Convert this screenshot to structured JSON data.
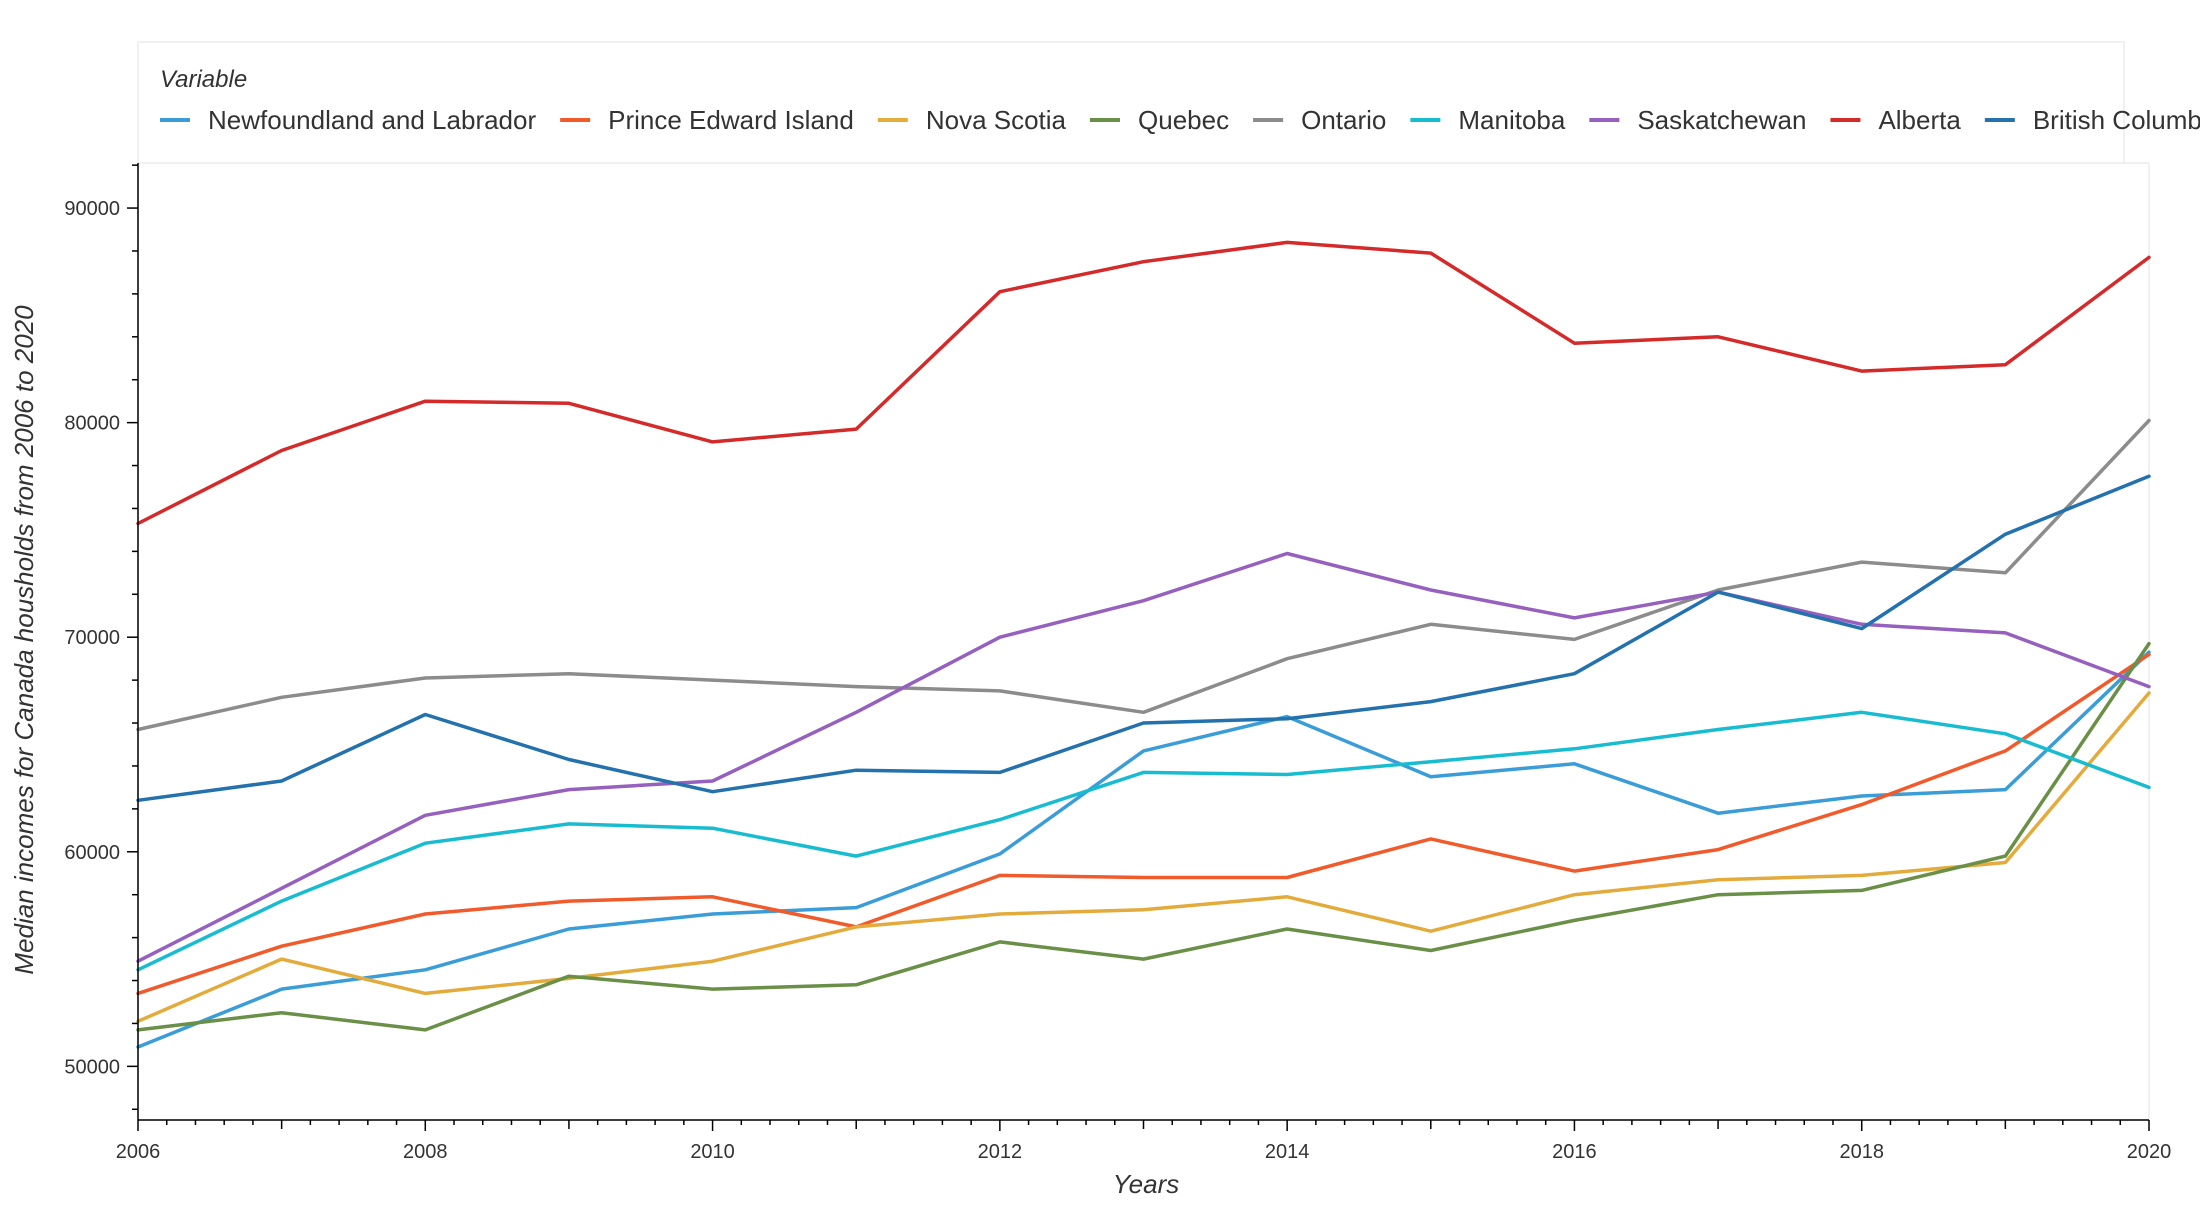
{
  "chart_data": {
    "type": "line",
    "xlabel": "Years",
    "ylabel": "Median incomes for Canada housholds from 2006 to 2020",
    "legend_title": "Variable",
    "legend_position": "top",
    "grid": false,
    "xlim": [
      2006,
      2020
    ],
    "ylim": [
      47500,
      92100
    ],
    "x": [
      2006,
      2007,
      2008,
      2009,
      2010,
      2011,
      2012,
      2013,
      2014,
      2015,
      2016,
      2017,
      2018,
      2019,
      2020
    ],
    "x_ticks": [
      2006,
      2008,
      2010,
      2012,
      2014,
      2016,
      2018,
      2020
    ],
    "y_ticks": [
      50000,
      60000,
      70000,
      80000,
      90000
    ],
    "series": [
      {
        "name": "Newfoundland and Labrador",
        "color": "#3a9dd8",
        "values": [
          50900,
          53600,
          54500,
          56400,
          57100,
          57400,
          59900,
          64700,
          66300,
          63500,
          64100,
          61800,
          62600,
          62900,
          69300
        ]
      },
      {
        "name": "Prince Edward Island",
        "color": "#f15a2b",
        "values": [
          53400,
          55600,
          57100,
          57700,
          57900,
          56500,
          58900,
          58800,
          58800,
          60600,
          59100,
          60100,
          62200,
          64700,
          69200
        ]
      },
      {
        "name": "Nova Scotia",
        "color": "#e3ab3b",
        "values": [
          52100,
          55000,
          53400,
          54100,
          54900,
          56500,
          57100,
          57300,
          57900,
          56300,
          58000,
          58700,
          58900,
          59500,
          67400
        ]
      },
      {
        "name": "Quebec",
        "color": "#6a8f47",
        "values": [
          51700,
          52500,
          51700,
          54200,
          53600,
          53800,
          55800,
          55000,
          56400,
          55400,
          56800,
          58000,
          58200,
          59800,
          69700
        ]
      },
      {
        "name": "Ontario",
        "color": "#8c8c8c",
        "values": [
          65700,
          67200,
          68100,
          68300,
          68000,
          67700,
          67500,
          66500,
          69000,
          70600,
          69900,
          72200,
          73500,
          73000,
          80100
        ]
      },
      {
        "name": "Manitoba",
        "color": "#17bcd0",
        "values": [
          54500,
          57700,
          60400,
          61300,
          61100,
          59800,
          61500,
          63700,
          63600,
          64200,
          64800,
          65700,
          66500,
          65500,
          63000
        ]
      },
      {
        "name": "Saskatchewan",
        "color": "#9560be",
        "values": [
          54900,
          58300,
          61700,
          62900,
          63300,
          66500,
          70000,
          71700,
          73900,
          72200,
          70900,
          72100,
          70600,
          70200,
          67700
        ]
      },
      {
        "name": "Alberta",
        "color": "#d42a2a",
        "values": [
          75300,
          78700,
          81000,
          80900,
          79100,
          79700,
          86100,
          87500,
          88400,
          87900,
          83700,
          84000,
          82400,
          82700,
          87700
        ]
      },
      {
        "name": "British Columbia",
        "color": "#2371ad",
        "values": [
          62400,
          63300,
          66400,
          64300,
          62800,
          63800,
          63700,
          66000,
          66200,
          67000,
          68300,
          72100,
          70400,
          74800,
          77500
        ]
      }
    ]
  }
}
